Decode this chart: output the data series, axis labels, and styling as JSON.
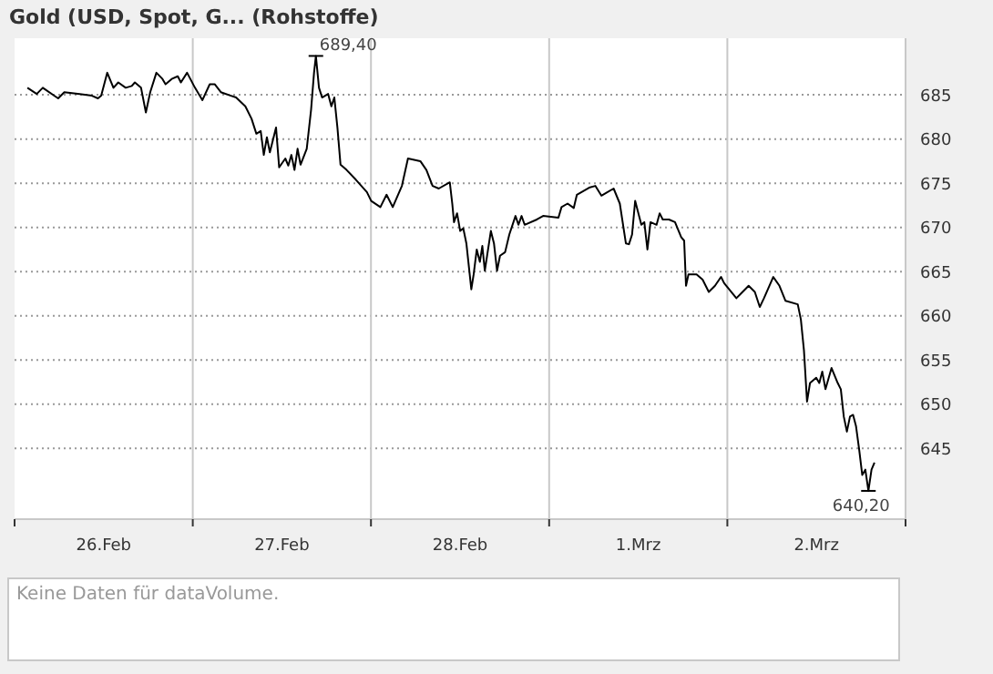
{
  "chart_data": {
    "type": "line",
    "title": "Gold (USD, Spot, G... (Rohstoffe)",
    "xlim": [
      "--02-26T00:00",
      "--03-03T00:00"
    ],
    "xticks": [
      {
        "value": "--02-26T00:00",
        "label": null
      },
      {
        "value": "--02-26T12:00",
        "label": "26.Feb"
      },
      {
        "value": "--02-27T00:00",
        "label": null
      },
      {
        "value": "--02-27T12:00",
        "label": "27.Feb"
      },
      {
        "value": "--02-28T00:00",
        "label": null
      },
      {
        "value": "--02-28T12:00",
        "label": "28.Feb"
      },
      {
        "value": "--03-01T00:00",
        "label": null
      },
      {
        "value": "--03-01T12:00",
        "label": "1.Mrz"
      },
      {
        "value": "--03-02T00:00",
        "label": null
      },
      {
        "value": "--03-02T12:00",
        "label": "2.Mrz"
      },
      {
        "value": "--03-03T00:00",
        "label": null
      }
    ],
    "ylim": [
      637,
      691.4
    ],
    "yticks": [
      645,
      650,
      655,
      660,
      665,
      670,
      675,
      680,
      685
    ],
    "grid": true,
    "marker": "none",
    "line_style": "solid",
    "annotations": [
      {
        "text": "689,40",
        "x": "--02-27T16:35",
        "y": 689.4
      },
      {
        "text": "640,20",
        "x": "--03-02T19:00",
        "y": 640.2
      },
      "Keine Daten für dataVolume."
    ],
    "series": [
      {
        "color": "#000000",
        "x": [
          "--02-26T01:44",
          "--02-26T02:59",
          "--02-26T03:48",
          "--02-26T05:52",
          "--02-26T06:42",
          "--02-26T08:46",
          "--02-26T10:25",
          "--02-26T11:14",
          "--02-26T11:40",
          "--02-26T12:29",
          "--02-26T13:19",
          "--02-26T13:58",
          "--02-26T14:58",
          "--02-26T15:47",
          "--02-26T16:12",
          "--02-26T17:02",
          "--02-26T17:41",
          "--02-26T18:16",
          "--02-26T19:06",
          "--02-26T19:55",
          "--02-26T20:20",
          "--02-26T21:10",
          "--02-26T21:59",
          "--02-26T22:24",
          "--02-26T23:14",
          "--02-27T00:18",
          "--02-27T01:18",
          "--02-27T02:17",
          "--02-27T02:57",
          "--02-27T03:47",
          "--02-27T05:50",
          "--02-27T07:05",
          "--02-27T07:55",
          "--02-27T08:34",
          "--02-27T09:09",
          "--02-27T09:34",
          "--02-27T09:59",
          "--02-27T10:23",
          "--02-27T11:13",
          "--02-27T11:38",
          "--02-27T12:28",
          "--02-27T12:52",
          "--02-27T13:17",
          "--02-27T13:42",
          "--02-27T14:07",
          "--02-27T14:31",
          "--02-27T15:21",
          "--02-27T15:56",
          "--02-27T16:20",
          "--02-27T16:35",
          "--02-27T17:00",
          "--02-27T17:25",
          "--02-27T18:14",
          "--02-27T18:40",
          "--02-27T19:04",
          "--02-27T19:29",
          "--02-27T19:54",
          "--02-27T20:43",
          "--02-27T21:58",
          "--02-27T23:27",
          "--02-28T00:02",
          "--02-28T01:16",
          "--02-28T02:06",
          "--02-28T02:56",
          "--02-28T04:10",
          "--02-28T04:59",
          "--02-28T06:39",
          "--02-28T07:28",
          "--02-28T08:18",
          "--02-28T09:08",
          "--02-28T10:37",
          "--02-28T10:57",
          "--02-28T11:11",
          "--02-28T11:36",
          "--02-28T12:01",
          "--02-28T12:26",
          "--02-28T12:51",
          "--02-28T13:31",
          "--02-28T13:50",
          "--02-28T14:15",
          "--02-28T14:40",
          "--02-28T15:00",
          "--02-28T15:20",
          "--02-28T16:09",
          "--02-28T16:34",
          "--02-28T16:59",
          "--02-28T17:23",
          "--02-28T18:04",
          "--02-28T18:38",
          "--02-28T19:28",
          "--02-28T19:52",
          "--02-28T20:17",
          "--02-28T20:42",
          "--02-28T22:21",
          "--02-28T23:11",
          "--03-01T01:15",
          "--03-01T01:40",
          "--03-01T02:29",
          "--03-01T03:19",
          "--03-01T03:44",
          "--03-01T05:23",
          "--03-01T06:13",
          "--03-01T07:02",
          "--03-01T07:52",
          "--03-01T08:41",
          "--03-01T09:31",
          "--03-01T10:20",
          "--03-01T10:45",
          "--03-01T11:10",
          "--03-01T11:35",
          "--03-01T12:25",
          "--03-01T12:49",
          "--03-01T13:14",
          "--03-01T13:39",
          "--03-01T14:28",
          "--03-01T14:53",
          "--03-01T15:18",
          "--03-01T16:08",
          "--03-01T16:57",
          "--03-01T17:47",
          "--03-01T18:11",
          "--03-01T18:26",
          "--03-01T18:46",
          "--03-01T19:51",
          "--03-01T20:40",
          "--03-01T21:30",
          "--03-01T22:20",
          "--03-01T23:09",
          "--03-01T23:34",
          "--03-02T01:13",
          "--03-02T02:03",
          "--03-02T02:52",
          "--03-02T03:42",
          "--03-02T04:22",
          "--03-02T04:56",
          "--03-02T06:11",
          "--03-02T07:01",
          "--03-02T07:50",
          "--03-02T09:29",
          "--03-02T09:54",
          "--03-02T10:19",
          "--03-02T10:44",
          "--03-02T11:08",
          "--03-02T11:58",
          "--03-02T12:23",
          "--03-02T12:47",
          "--03-02T13:13",
          "--03-02T14:02",
          "--03-02T14:52",
          "--03-02T15:17",
          "--03-02T15:41",
          "--03-02T16:06",
          "--03-02T16:31",
          "--03-02T16:56",
          "--03-02T17:20",
          "--03-02T17:46",
          "--03-02T18:10",
          "--03-02T18:35",
          "--03-02T19:00",
          "--03-02T19:25",
          "--03-02T19:49"
        ],
        "values": [
          685.8,
          685.1,
          685.8,
          684.6,
          685.3,
          685.1,
          684.9,
          684.6,
          684.9,
          687.5,
          685.8,
          686.4,
          685.8,
          686.0,
          686.4,
          685.8,
          683.0,
          685.3,
          687.5,
          686.8,
          686.2,
          686.8,
          687.1,
          686.4,
          687.5,
          685.8,
          684.4,
          686.2,
          686.2,
          685.3,
          684.7,
          683.7,
          682.3,
          680.6,
          680.9,
          678.2,
          680.2,
          678.5,
          681.3,
          676.8,
          677.8,
          677.0,
          678.2,
          676.5,
          678.9,
          677.1,
          678.9,
          683.3,
          687.5,
          689.4,
          685.8,
          684.7,
          685.1,
          683.7,
          684.7,
          681.3,
          677.1,
          676.5,
          675.4,
          674.0,
          673.0,
          672.3,
          673.7,
          672.3,
          674.7,
          677.8,
          677.5,
          676.5,
          674.7,
          674.4,
          675.1,
          672.7,
          670.6,
          671.6,
          669.6,
          669.9,
          668.2,
          663.0,
          664.7,
          667.5,
          666.1,
          667.9,
          665.1,
          669.6,
          668.2,
          665.1,
          666.8,
          667.2,
          669.2,
          671.3,
          670.3,
          671.3,
          670.3,
          670.9,
          671.3,
          671.1,
          672.3,
          672.7,
          672.2,
          673.7,
          674.5,
          674.7,
          673.6,
          674.0,
          674.4,
          672.7,
          668.2,
          668.1,
          669.2,
          673.0,
          670.3,
          670.6,
          667.5,
          670.6,
          670.3,
          671.6,
          670.9,
          670.9,
          670.6,
          668.9,
          668.5,
          663.4,
          664.7,
          664.7,
          664.1,
          662.7,
          663.4,
          664.4,
          663.7,
          662.0,
          662.7,
          663.4,
          662.7,
          661.0,
          662.0,
          664.4,
          663.4,
          661.7,
          661.3,
          659.6,
          656.1,
          650.3,
          652.4,
          653.0,
          652.4,
          653.7,
          651.7,
          654.1,
          652.4,
          651.7,
          648.6,
          646.9,
          648.6,
          648.8,
          647.5,
          644.8,
          642.0,
          642.6,
          640.2,
          642.6,
          643.4
        ]
      }
    ]
  }
}
